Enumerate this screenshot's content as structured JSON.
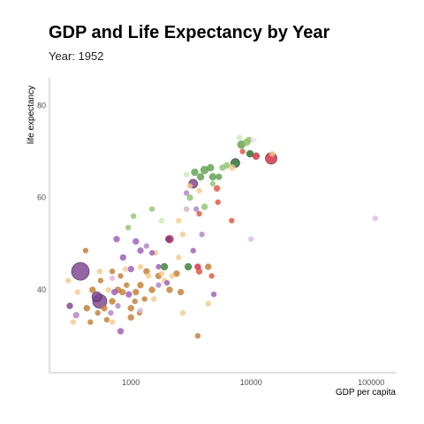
{
  "chart_data": {
    "type": "scatter",
    "title": "GDP and Life Expectancy by Year",
    "subtitle": "Year: 1952",
    "xlabel": "GDP per capita",
    "ylabel": "life expectancy",
    "xscale": "log",
    "xlim": [
      210,
      160000
    ],
    "ylim": [
      22,
      86
    ],
    "xticks": [
      {
        "value": 1000,
        "label": "1000"
      },
      {
        "value": 10000,
        "label": "10000"
      },
      {
        "value": 100000,
        "label": "100000"
      }
    ],
    "yticks": [
      {
        "value": 40,
        "label": "40"
      },
      {
        "value": 60,
        "label": "60"
      },
      {
        "value": 80,
        "label": "80"
      }
    ],
    "grid": false,
    "legend": "none",
    "points": [
      {
        "x": 380,
        "y": 44,
        "size": 10,
        "color": "#7b3f8f"
      },
      {
        "x": 550,
        "y": 37.5,
        "size": 8,
        "color": "#7b3f8f"
      },
      {
        "x": 520,
        "y": 38.5,
        "size": 5.5,
        "color": "#7b3f8f"
      },
      {
        "x": 14700,
        "y": 68.5,
        "size": 6.5,
        "color": "#d62839"
      },
      {
        "x": 3300,
        "y": 63,
        "size": 5,
        "color": "#7b3f8f"
      },
      {
        "x": 7400,
        "y": 67.5,
        "size": 5,
        "color": "#1e6b26"
      },
      {
        "x": 9800,
        "y": 69.5,
        "size": 4,
        "color": "#1e6b26"
      },
      {
        "x": 11000,
        "y": 69,
        "size": 4,
        "color": "#d62839"
      },
      {
        "x": 2100,
        "y": 51,
        "size": 4.5,
        "color": "#c81e34"
      },
      {
        "x": 2050,
        "y": 51,
        "size": 3.5,
        "color": "#7b3f8f"
      },
      {
        "x": 1900,
        "y": 45,
        "size": 4,
        "color": "#2f7f2f"
      },
      {
        "x": 3000,
        "y": 45,
        "size": 4,
        "color": "#2f7f2f"
      },
      {
        "x": 3600,
        "y": 45,
        "size": 3.5,
        "color": "#d62839"
      },
      {
        "x": 310,
        "y": 36.5,
        "size": 3.5,
        "color": "#7b3f8f"
      },
      {
        "x": 350,
        "y": 34.5,
        "size": 3.5,
        "color": "#b07fc0"
      },
      {
        "x": 430,
        "y": 36,
        "size": 3.5,
        "color": "#c07a2f"
      },
      {
        "x": 480,
        "y": 40,
        "size": 3.5,
        "color": "#c07a2f"
      },
      {
        "x": 600,
        "y": 36,
        "size": 3.5,
        "color": "#c07a2f"
      },
      {
        "x": 700,
        "y": 37.5,
        "size": 3.5,
        "color": "#c07a2f"
      },
      {
        "x": 780,
        "y": 40,
        "size": 3.5,
        "color": "#c07a2f"
      },
      {
        "x": 850,
        "y": 39.5,
        "size": 3.5,
        "color": "#c07a2f"
      },
      {
        "x": 1000,
        "y": 36,
        "size": 3.5,
        "color": "#c07a2f"
      },
      {
        "x": 1000,
        "y": 34,
        "size": 3.5,
        "color": "#c07a2f"
      },
      {
        "x": 1100,
        "y": 39.5,
        "size": 3.5,
        "color": "#c07a2f"
      },
      {
        "x": 1200,
        "y": 41,
        "size": 3.5,
        "color": "#c07a2f"
      },
      {
        "x": 1350,
        "y": 44,
        "size": 3.5,
        "color": "#c07a2f"
      },
      {
        "x": 1500,
        "y": 40,
        "size": 3.5,
        "color": "#c07a2f"
      },
      {
        "x": 1700,
        "y": 43,
        "size": 3.5,
        "color": "#c07a2f"
      },
      {
        "x": 2100,
        "y": 40,
        "size": 3.5,
        "color": "#c07a2f"
      },
      {
        "x": 2400,
        "y": 43.5,
        "size": 3.5,
        "color": "#c07a2f"
      },
      {
        "x": 2600,
        "y": 39.5,
        "size": 3.5,
        "color": "#c07a2f"
      },
      {
        "x": 4400,
        "y": 45,
        "size": 3.5,
        "color": "#c07a2f"
      },
      {
        "x": 3600,
        "y": 30,
        "size": 3,
        "color": "#c07a2f"
      },
      {
        "x": 420,
        "y": 48.5,
        "size": 3,
        "color": "#c07a2f"
      },
      {
        "x": 630,
        "y": 33.5,
        "size": 3,
        "color": "#c07a2f"
      },
      {
        "x": 1080,
        "y": 37.5,
        "size": 3,
        "color": "#c07a2f"
      },
      {
        "x": 1180,
        "y": 35,
        "size": 3,
        "color": "#c07a2f"
      },
      {
        "x": 1300,
        "y": 38,
        "size": 3,
        "color": "#c07a2f"
      },
      {
        "x": 820,
        "y": 43,
        "size": 3,
        "color": "#c07a2f"
      },
      {
        "x": 920,
        "y": 41,
        "size": 3,
        "color": "#c07a2f"
      },
      {
        "x": 700,
        "y": 44,
        "size": 3,
        "color": "#c07a2f"
      },
      {
        "x": 560,
        "y": 42,
        "size": 3,
        "color": "#c07a2f"
      },
      {
        "x": 530,
        "y": 35,
        "size": 3,
        "color": "#c07a2f"
      },
      {
        "x": 460,
        "y": 33,
        "size": 3,
        "color": "#c07a2f"
      },
      {
        "x": 330,
        "y": 33,
        "size": 3,
        "color": "#f6c98a"
      },
      {
        "x": 300,
        "y": 42,
        "size": 3,
        "color": "#f6c98a"
      },
      {
        "x": 360,
        "y": 39.5,
        "size": 3,
        "color": "#f6c98a"
      },
      {
        "x": 550,
        "y": 44,
        "size": 3,
        "color": "#f6c98a"
      },
      {
        "x": 650,
        "y": 40,
        "size": 3,
        "color": "#f6c98a"
      },
      {
        "x": 900,
        "y": 44.5,
        "size": 3,
        "color": "#f6c98a"
      },
      {
        "x": 1400,
        "y": 43,
        "size": 3,
        "color": "#f6c98a"
      },
      {
        "x": 1600,
        "y": 48,
        "size": 3,
        "color": "#f6c98a"
      },
      {
        "x": 1900,
        "y": 42,
        "size": 3,
        "color": "#f6c98a"
      },
      {
        "x": 2200,
        "y": 43,
        "size": 3,
        "color": "#f6c98a"
      },
      {
        "x": 2500,
        "y": 47,
        "size": 3,
        "color": "#f6c98a"
      },
      {
        "x": 2700,
        "y": 52,
        "size": 3,
        "color": "#f6c98a"
      },
      {
        "x": 2500,
        "y": 55,
        "size": 3,
        "color": "#f6c98a"
      },
      {
        "x": 2900,
        "y": 57.5,
        "size": 3,
        "color": "#f6c98a"
      },
      {
        "x": 2700,
        "y": 35,
        "size": 3,
        "color": "#f6c98a"
      },
      {
        "x": 3100,
        "y": 62.5,
        "size": 3,
        "color": "#f6c98a"
      },
      {
        "x": 1800,
        "y": 43.5,
        "size": 3,
        "color": "#f6c98a"
      },
      {
        "x": 4400,
        "y": 37,
        "size": 3,
        "color": "#f6c98a"
      },
      {
        "x": 1550,
        "y": 38,
        "size": 3,
        "color": "#f6c98a"
      },
      {
        "x": 700,
        "y": 33,
        "size": 3,
        "color": "#f6c98a"
      },
      {
        "x": 1200,
        "y": 45,
        "size": 3,
        "color": "#f6c98a"
      },
      {
        "x": 3700,
        "y": 61.5,
        "size": 3,
        "color": "#f6c98a"
      },
      {
        "x": 7000,
        "y": 66.5,
        "size": 3.5,
        "color": "#f6c98a"
      },
      {
        "x": 15000,
        "y": 69.5,
        "size": 3,
        "color": "#f6c98a"
      },
      {
        "x": 3400,
        "y": 65.5,
        "size": 4,
        "color": "#5a9e47"
      },
      {
        "x": 3800,
        "y": 64.5,
        "size": 4,
        "color": "#5a9e47"
      },
      {
        "x": 4100,
        "y": 66,
        "size": 4.5,
        "color": "#5a9e47"
      },
      {
        "x": 4800,
        "y": 64.5,
        "size": 4,
        "color": "#5a9e47"
      },
      {
        "x": 4600,
        "y": 66.5,
        "size": 4,
        "color": "#5a9e47"
      },
      {
        "x": 5400,
        "y": 64.5,
        "size": 3.5,
        "color": "#5a9e47"
      },
      {
        "x": 5800,
        "y": 66.5,
        "size": 3.5,
        "color": "#8cc36a"
      },
      {
        "x": 6300,
        "y": 67,
        "size": 3.5,
        "color": "#8cc36a"
      },
      {
        "x": 8300,
        "y": 71.5,
        "size": 4.5,
        "color": "#5a9e47"
      },
      {
        "x": 9200,
        "y": 72,
        "size": 4,
        "color": "#8cc36a"
      },
      {
        "x": 9600,
        "y": 72.5,
        "size": 3.5,
        "color": "#8cc36a"
      },
      {
        "x": 4100,
        "y": 58,
        "size": 3.5,
        "color": "#8cc36a"
      },
      {
        "x": 3100,
        "y": 60,
        "size": 3.5,
        "color": "#8cc36a"
      },
      {
        "x": 4800,
        "y": 63,
        "size": 3,
        "color": "#8cc36a"
      },
      {
        "x": 1500,
        "y": 57.5,
        "size": 3,
        "color": "#8cc36a"
      },
      {
        "x": 1050,
        "y": 56,
        "size": 3,
        "color": "#8cc36a"
      },
      {
        "x": 950,
        "y": 53.5,
        "size": 3,
        "color": "#8cc36a"
      },
      {
        "x": 1800,
        "y": 55,
        "size": 3,
        "color": "#c9e8b4"
      },
      {
        "x": 8000,
        "y": 73,
        "size": 3,
        "color": "#c9e8b4"
      },
      {
        "x": 2900,
        "y": 65,
        "size": 3,
        "color": "#c9e8b4"
      },
      {
        "x": 5200,
        "y": 62,
        "size": 3.5,
        "color": "#e0503c"
      },
      {
        "x": 5300,
        "y": 59,
        "size": 3,
        "color": "#e0503c"
      },
      {
        "x": 3700,
        "y": 56.5,
        "size": 3,
        "color": "#e0503c"
      },
      {
        "x": 3700,
        "y": 44,
        "size": 3.5,
        "color": "#e0503c"
      },
      {
        "x": 4700,
        "y": 43,
        "size": 3,
        "color": "#e0503c"
      },
      {
        "x": 6900,
        "y": 55,
        "size": 3,
        "color": "#e0503c"
      },
      {
        "x": 8500,
        "y": 70,
        "size": 3,
        "color": "#e0503c"
      },
      {
        "x": 1000,
        "y": 44.5,
        "size": 3.5,
        "color": "#9b59b6"
      },
      {
        "x": 760,
        "y": 51,
        "size": 3.5,
        "color": "#9b59b6"
      },
      {
        "x": 1100,
        "y": 50.5,
        "size": 3.5,
        "color": "#9b59b6"
      },
      {
        "x": 1200,
        "y": 48.5,
        "size": 3.5,
        "color": "#9b59b6"
      },
      {
        "x": 860,
        "y": 47,
        "size": 3.5,
        "color": "#9b59b6"
      },
      {
        "x": 1500,
        "y": 48,
        "size": 3,
        "color": "#9b59b6"
      },
      {
        "x": 960,
        "y": 39,
        "size": 3.5,
        "color": "#9b59b6"
      },
      {
        "x": 730,
        "y": 39.5,
        "size": 3.5,
        "color": "#9b59b6"
      },
      {
        "x": 820,
        "y": 31,
        "size": 3.5,
        "color": "#9b59b6"
      },
      {
        "x": 1700,
        "y": 45,
        "size": 3,
        "color": "#9b59b6"
      },
      {
        "x": 2000,
        "y": 41.5,
        "size": 3,
        "color": "#9b59b6"
      },
      {
        "x": 3300,
        "y": 48.5,
        "size": 3,
        "color": "#9b59b6"
      },
      {
        "x": 4900,
        "y": 39,
        "size": 3,
        "color": "#9b59b6"
      },
      {
        "x": 780,
        "y": 36.5,
        "size": 3,
        "color": "#b07fc0"
      },
      {
        "x": 3500,
        "y": 57.5,
        "size": 3,
        "color": "#b07fc0"
      },
      {
        "x": 3900,
        "y": 52,
        "size": 3,
        "color": "#b07fc0"
      },
      {
        "x": 2900,
        "y": 61,
        "size": 3,
        "color": "#b07fc0"
      },
      {
        "x": 1350,
        "y": 49.5,
        "size": 3,
        "color": "#b07fc0"
      },
      {
        "x": 680,
        "y": 35,
        "size": 3,
        "color": "#b07fc0"
      },
      {
        "x": 1200,
        "y": 35.5,
        "size": 3,
        "color": "#d9b8e6"
      },
      {
        "x": 700,
        "y": 42.5,
        "size": 3,
        "color": "#d9b8e6"
      },
      {
        "x": 10000,
        "y": 51,
        "size": 3,
        "color": "#d9b8e6"
      },
      {
        "x": 108000,
        "y": 55.5,
        "size": 3,
        "color": "#d9b8e6"
      },
      {
        "x": 2900,
        "y": 57.5,
        "size": 3,
        "color": "#d9b8e6"
      },
      {
        "x": 10500,
        "y": 72.5,
        "size": 3,
        "color": "#f0e0f5"
      },
      {
        "x": 1700,
        "y": 41,
        "size": 3,
        "color": "#b07fc0"
      }
    ]
  }
}
